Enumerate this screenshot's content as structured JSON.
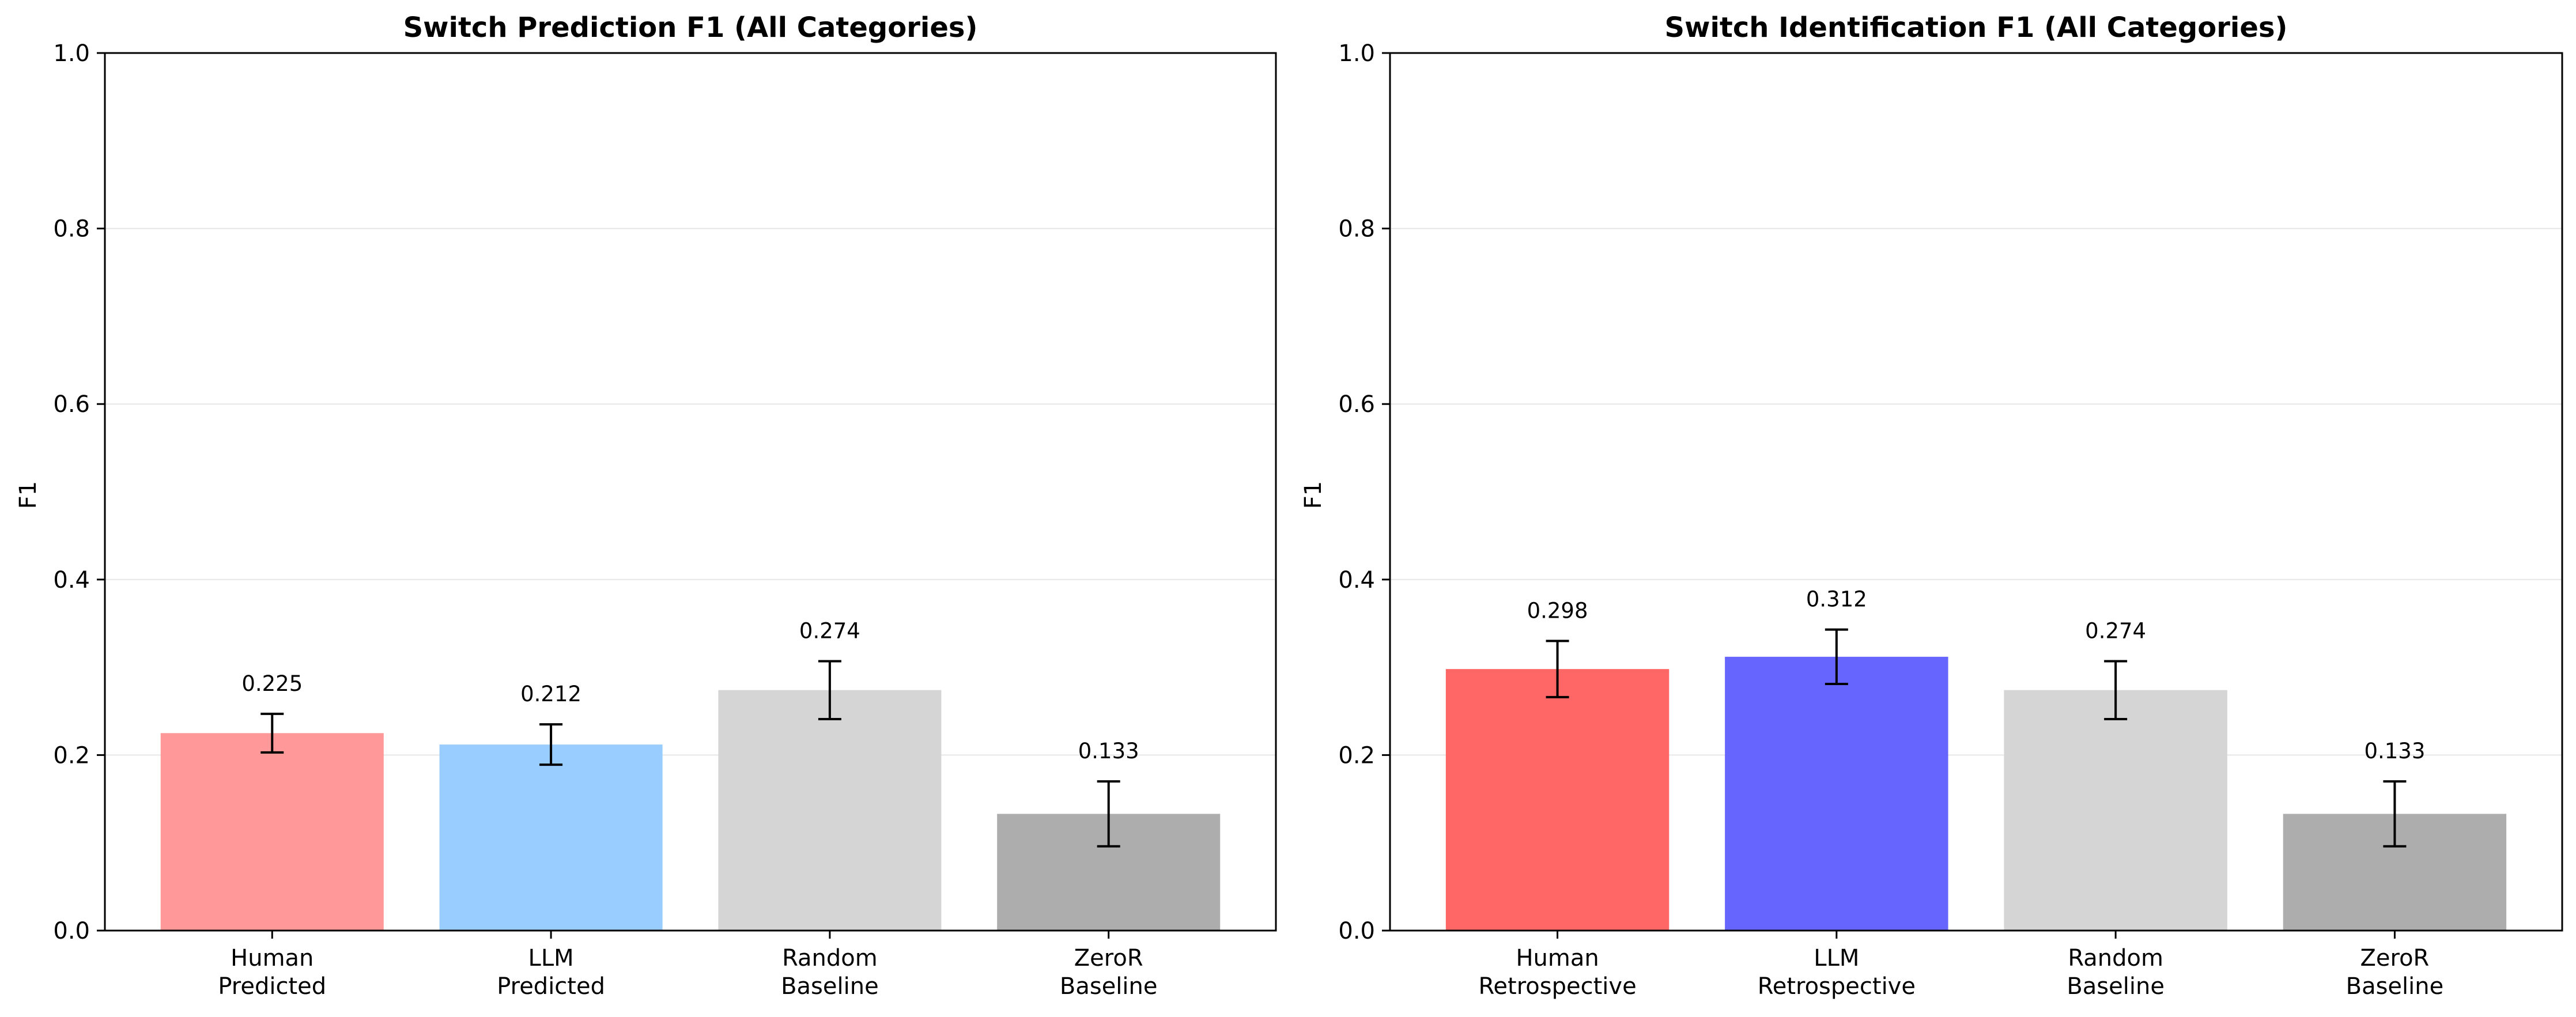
{
  "chart_data": [
    {
      "type": "bar",
      "title": "Switch Prediction F1 (All Categories)",
      "xlabel": "",
      "ylabel": "F1",
      "ylim": [
        0,
        1.0
      ],
      "yticks": [
        "0.0",
        "0.2",
        "0.4",
        "0.6",
        "0.8",
        "1.0"
      ],
      "grid": "horizontal",
      "categories": [
        [
          "Human",
          "Predicted"
        ],
        [
          "LLM",
          "Predicted"
        ],
        [
          "Random",
          "Baseline"
        ],
        [
          "ZeroR",
          "Baseline"
        ]
      ],
      "values": [
        0.225,
        0.212,
        0.274,
        0.133
      ],
      "value_labels": [
        "0.225",
        "0.212",
        "0.274",
        "0.133"
      ],
      "error": [
        0.022,
        0.023,
        0.033,
        0.037
      ],
      "colors": [
        "#ff9999",
        "#99ccff",
        "#d5d5d5",
        "#adadad"
      ]
    },
    {
      "type": "bar",
      "title": "Switch Identification F1 (All Categories)",
      "xlabel": "",
      "ylabel": "F1",
      "ylim": [
        0,
        1.0
      ],
      "yticks": [
        "0.0",
        "0.2",
        "0.4",
        "0.6",
        "0.8",
        "1.0"
      ],
      "grid": "horizontal",
      "categories": [
        [
          "Human",
          "Retrospective"
        ],
        [
          "LLM",
          "Retrospective"
        ],
        [
          "Random",
          "Baseline"
        ],
        [
          "ZeroR",
          "Baseline"
        ]
      ],
      "values": [
        0.298,
        0.312,
        0.274,
        0.133
      ],
      "value_labels": [
        "0.298",
        "0.312",
        "0.274",
        "0.133"
      ],
      "error": [
        0.032,
        0.031,
        0.033,
        0.037
      ],
      "colors": [
        "#ff6666",
        "#6666ff",
        "#d5d5d5",
        "#adadad"
      ]
    }
  ]
}
